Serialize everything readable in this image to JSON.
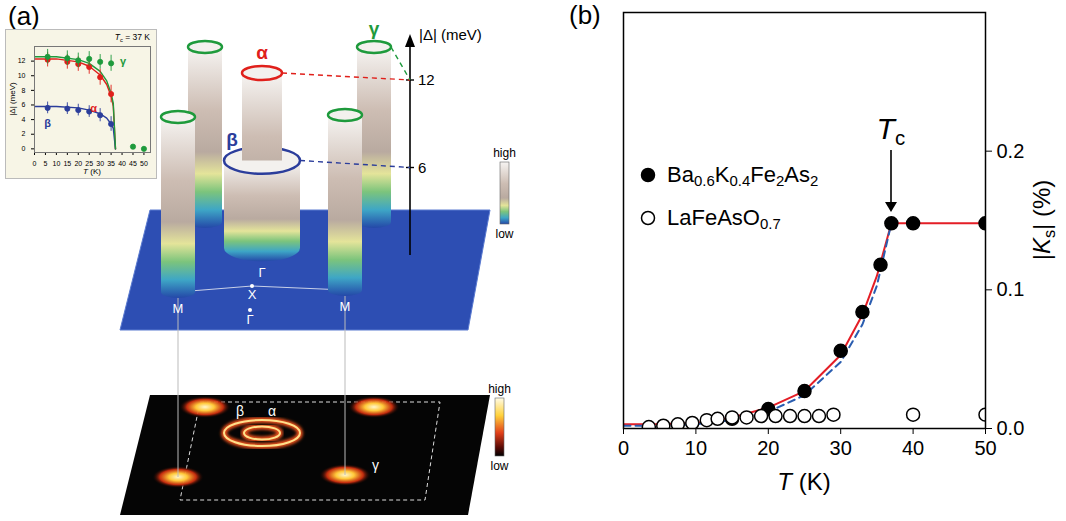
{
  "chart_data": [
    {
      "type": "scatter",
      "title": "Tc = 37 K",
      "x_label": "T (K)",
      "y_label": "|Δ| (meV)",
      "xlim": [
        0,
        53
      ],
      "xticks": [
        0,
        5,
        10,
        15,
        20,
        25,
        30,
        35,
        40,
        45,
        50
      ],
      "ylim": [
        -0.5,
        14
      ],
      "yticks": [
        0,
        2,
        4,
        6,
        8,
        10,
        12
      ],
      "grid": false,
      "series": [
        {
          "name": "α",
          "type": "scatter",
          "marker": "filled circle",
          "color": "#e0201b",
          "x": [
            6,
            15,
            20,
            25,
            30,
            35
          ],
          "values": [
            12.2,
            11.9,
            11.6,
            11.2,
            9.8,
            7.5
          ],
          "errors": [
            1.0,
            1.0,
            1.0,
            1.0,
            1.1,
            1.2
          ]
        },
        {
          "name": "β",
          "type": "scatter",
          "marker": "filled circle",
          "color": "#2b3d9b",
          "x": [
            6,
            15,
            20,
            25,
            30,
            35
          ],
          "values": [
            5.6,
            5.5,
            5.3,
            5.1,
            4.6,
            3.4
          ],
          "errors": [
            0.8,
            0.8,
            0.8,
            0.8,
            0.9,
            1.0
          ]
        },
        {
          "name": "γ",
          "type": "scatter",
          "marker": "filled circle",
          "color": "#1e9a3c",
          "x": [
            6,
            15,
            20,
            25,
            30,
            35,
            45,
            50
          ],
          "values": [
            12.6,
            12.4,
            12.1,
            12.3,
            11.9,
            11.7,
            0.3,
            0.0
          ],
          "errors": [
            1.0,
            1.0,
            1.0,
            1.0,
            1.0,
            1.1,
            0.3,
            0.3
          ]
        },
        {
          "type": "line",
          "line_style": "solid",
          "color": "#e0201b",
          "x": [
            0,
            10,
            20,
            25,
            30,
            33,
            35,
            36,
            37
          ],
          "values": [
            12.3,
            12.3,
            11.9,
            11.3,
            10.1,
            8.8,
            7.2,
            5.8,
            0
          ]
        },
        {
          "type": "line",
          "line_style": "solid",
          "color": "#2b3d9b",
          "x": [
            0,
            10,
            20,
            25,
            30,
            33,
            35,
            36,
            37
          ],
          "values": [
            5.8,
            5.8,
            5.6,
            5.3,
            4.8,
            4.2,
            3.4,
            2.8,
            0
          ]
        },
        {
          "type": "line",
          "line_style": "solid",
          "color": "#1e9a3c",
          "x": [
            0,
            10,
            20,
            25,
            30,
            33,
            35,
            36,
            37
          ],
          "values": [
            12.6,
            12.6,
            12.2,
            11.7,
            10.6,
            9.3,
            7.6,
            6.2,
            0
          ]
        }
      ]
    },
    {
      "type": "scatter",
      "panel_label": "(b)",
      "x_label": "T (K)",
      "y_label": "|Ks| (%)",
      "xlim": [
        0,
        50
      ],
      "xticks": [
        0,
        10,
        20,
        30,
        40,
        50
      ],
      "ylim": [
        0,
        0.3
      ],
      "yticks": [
        {
          "value": 0,
          "label": "0.0"
        },
        0.1,
        0.2
      ],
      "grid": false,
      "legend": "upper left",
      "annotations": [
        {
          "text": "Tc",
          "x": 37
        }
      ],
      "series": [
        {
          "type": "line",
          "line_style": "solid",
          "color": "#e41e26",
          "x": [
            0,
            5,
            10,
            15,
            20,
            25,
            30,
            33,
            35,
            37,
            40,
            50
          ],
          "values": [
            0.003,
            0.003,
            0.004,
            0.008,
            0.015,
            0.027,
            0.053,
            0.082,
            0.11,
            0.148,
            0.148,
            0.148
          ]
        },
        {
          "type": "line",
          "line_style": "dashed",
          "color": "#2a5db0",
          "x": [
            0,
            5,
            10,
            15,
            20,
            25,
            30,
            33,
            35,
            37
          ],
          "values": [
            0.002,
            0.002,
            0.003,
            0.006,
            0.012,
            0.024,
            0.048,
            0.075,
            0.103,
            0.148
          ]
        },
        {
          "name": "Ba0.6K0.4Fe2As2",
          "type": "scatter",
          "marker": "filled circle",
          "color": "#000000",
          "x": [
            15,
            20,
            25,
            30,
            33,
            35.5,
            37,
            40,
            50
          ],
          "values": [
            0.007,
            0.014,
            0.027,
            0.056,
            0.084,
            0.118,
            0.148,
            0.148,
            0.148
          ]
        },
        {
          "name": "LaFeAsO0.7",
          "type": "scatter",
          "marker": "open circle",
          "color": "#000000",
          "x": [
            3.5,
            5.5,
            7.5,
            9.5,
            11.5,
            13,
            15,
            17,
            19,
            21,
            23,
            25,
            27,
            29,
            40,
            50
          ],
          "values": [
            0.001,
            0.002,
            0.003,
            0.004,
            0.006,
            0.007,
            0.008,
            0.008,
            0.009,
            0.009,
            0.009,
            0.009,
            0.009,
            0.01,
            0.01,
            0.01
          ]
        }
      ]
    }
  ],
  "diagram": {
    "panel_label": "(a)",
    "gap_axis": {
      "label": "|Δ| (meV)",
      "ticks": [
        6,
        12
      ]
    },
    "pockets": [
      {
        "label": "α",
        "color": "#e0201b",
        "gap": 12
      },
      {
        "label": "β",
        "color": "#2b3d9b",
        "gap": 6
      },
      {
        "label": "γ",
        "color": "#1e9a3c",
        "gap": 12
      }
    ],
    "zone_points": [
      "Γ",
      "X",
      "Γ",
      "M",
      "M"
    ],
    "colorbars": [
      {
        "top": "high",
        "bottom": "low"
      },
      {
        "top": "high",
        "bottom": "low"
      }
    ],
    "map_labels": [
      "β",
      "α",
      "γ"
    ]
  }
}
